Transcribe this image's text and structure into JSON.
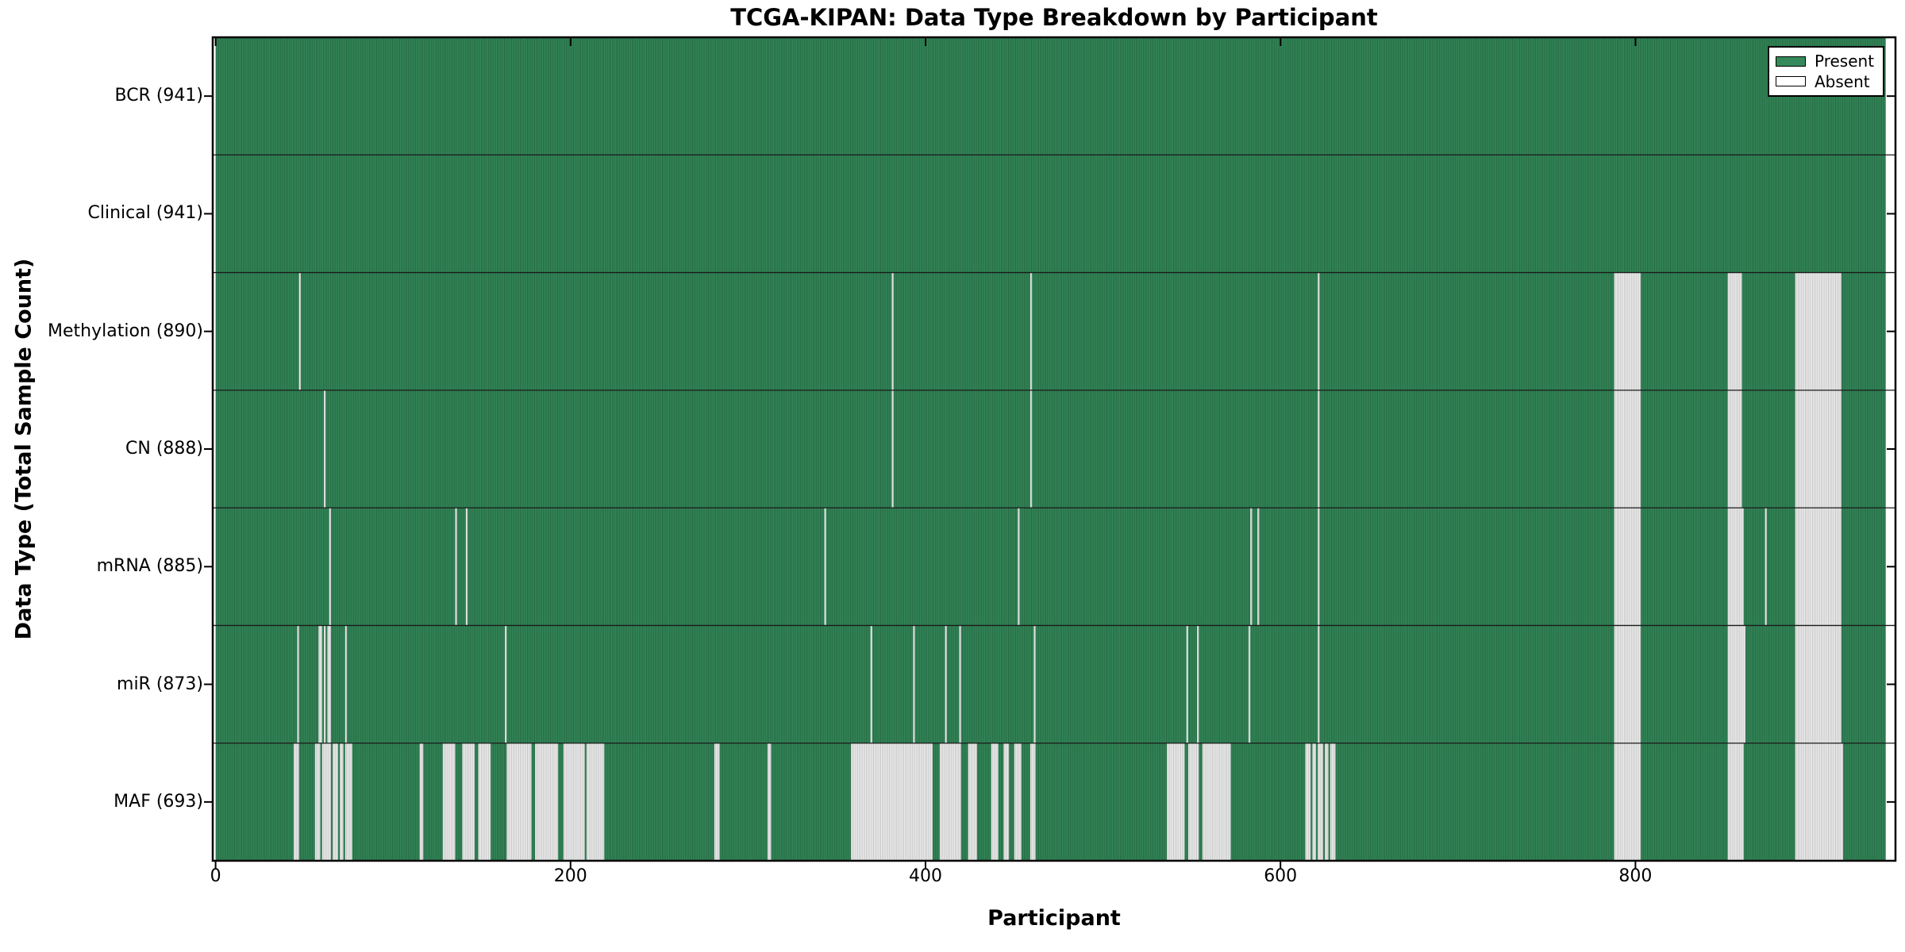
{
  "figure": {
    "title": "TCGA-KIPAN: Data Type Breakdown by Participant"
  },
  "legend": {
    "present_label": "Present",
    "absent_label": "Absent"
  },
  "chart_data": {
    "type": "heatmap",
    "title": "TCGA-KIPAN: Data Type Breakdown by Participant",
    "xlabel": "Participant",
    "ylabel": "Data Type (Total Sample Count)",
    "legend_position": "upper right",
    "legend_entries": [
      {
        "label": "Present",
        "color": "#35895a"
      },
      {
        "label": "Absent",
        "color": "#ffffff"
      }
    ],
    "grid": "row separators only",
    "participants_total": 941,
    "xlim": [
      0,
      946
    ],
    "x_ticks": [
      0,
      200,
      400,
      600,
      800
    ],
    "colors": {
      "present_fill": "#35895a",
      "present_edge": "#1d5c3a",
      "absent_fill": "#eeeeee",
      "absent_edge": "#b5b5b5",
      "axis": "#000000",
      "separator": "#1a1a1a",
      "background": "#ffffff"
    },
    "rows": [
      {
        "label": "BCR (941)",
        "data_type": "BCR",
        "total_sample_count": 941,
        "absent_ranges": []
      },
      {
        "label": "Clinical (941)",
        "data_type": "Clinical",
        "total_sample_count": 941,
        "absent_ranges": []
      },
      {
        "label": "Methylation (890)",
        "data_type": "Methylation",
        "total_sample_count": 890,
        "absent_ranges": [
          [
            47,
            47
          ],
          [
            381,
            381
          ],
          [
            459,
            459
          ],
          [
            621,
            621
          ],
          [
            788,
            802
          ],
          [
            852,
            859
          ],
          [
            890,
            915
          ]
        ]
      },
      {
        "label": "CN (888)",
        "data_type": "CN",
        "total_sample_count": 888,
        "absent_ranges": [
          [
            61,
            61
          ],
          [
            381,
            381
          ],
          [
            459,
            459
          ],
          [
            621,
            621
          ],
          [
            788,
            802
          ],
          [
            852,
            859
          ],
          [
            890,
            915
          ]
        ]
      },
      {
        "label": "mRNA (885)",
        "data_type": "mRNA",
        "total_sample_count": 885,
        "absent_ranges": [
          [
            64,
            64
          ],
          [
            135,
            135
          ],
          [
            141,
            141
          ],
          [
            343,
            343
          ],
          [
            452,
            452
          ],
          [
            583,
            583
          ],
          [
            587,
            587
          ],
          [
            621,
            621
          ],
          [
            788,
            802
          ],
          [
            852,
            860
          ],
          [
            873,
            873
          ],
          [
            890,
            915
          ]
        ]
      },
      {
        "label": "miR (873)",
        "data_type": "miR",
        "total_sample_count": 873,
        "absent_ranges": [
          [
            46,
            46
          ],
          [
            58,
            59
          ],
          [
            61,
            61
          ],
          [
            63,
            64
          ],
          [
            73,
            73
          ],
          [
            163,
            163
          ],
          [
            369,
            369
          ],
          [
            393,
            393
          ],
          [
            411,
            411
          ],
          [
            419,
            419
          ],
          [
            461,
            461
          ],
          [
            547,
            547
          ],
          [
            553,
            553
          ],
          [
            582,
            582
          ],
          [
            621,
            621
          ],
          [
            788,
            802
          ],
          [
            852,
            861
          ],
          [
            890,
            915
          ]
        ]
      },
      {
        "label": "MAF (693)",
        "data_type": "MAF",
        "total_sample_count": 693,
        "absent_ranges": [
          [
            44,
            46
          ],
          [
            56,
            58
          ],
          [
            60,
            64
          ],
          [
            66,
            68
          ],
          [
            70,
            71
          ],
          [
            73,
            76
          ],
          [
            115,
            116
          ],
          [
            128,
            134
          ],
          [
            139,
            145
          ],
          [
            148,
            154
          ],
          [
            164,
            177
          ],
          [
            180,
            192
          ],
          [
            196,
            207
          ],
          [
            209,
            218
          ],
          [
            281,
            283
          ],
          [
            311,
            312
          ],
          [
            358,
            403
          ],
          [
            408,
            419
          ],
          [
            424,
            428
          ],
          [
            437,
            440
          ],
          [
            444,
            446
          ],
          [
            450,
            453
          ],
          [
            459,
            461
          ],
          [
            536,
            545
          ],
          [
            548,
            553
          ],
          [
            556,
            571
          ],
          [
            614,
            616
          ],
          [
            618,
            619
          ],
          [
            621,
            623
          ],
          [
            625,
            626
          ],
          [
            628,
            630
          ],
          [
            788,
            802
          ],
          [
            852,
            860
          ],
          [
            890,
            916
          ]
        ]
      }
    ]
  }
}
